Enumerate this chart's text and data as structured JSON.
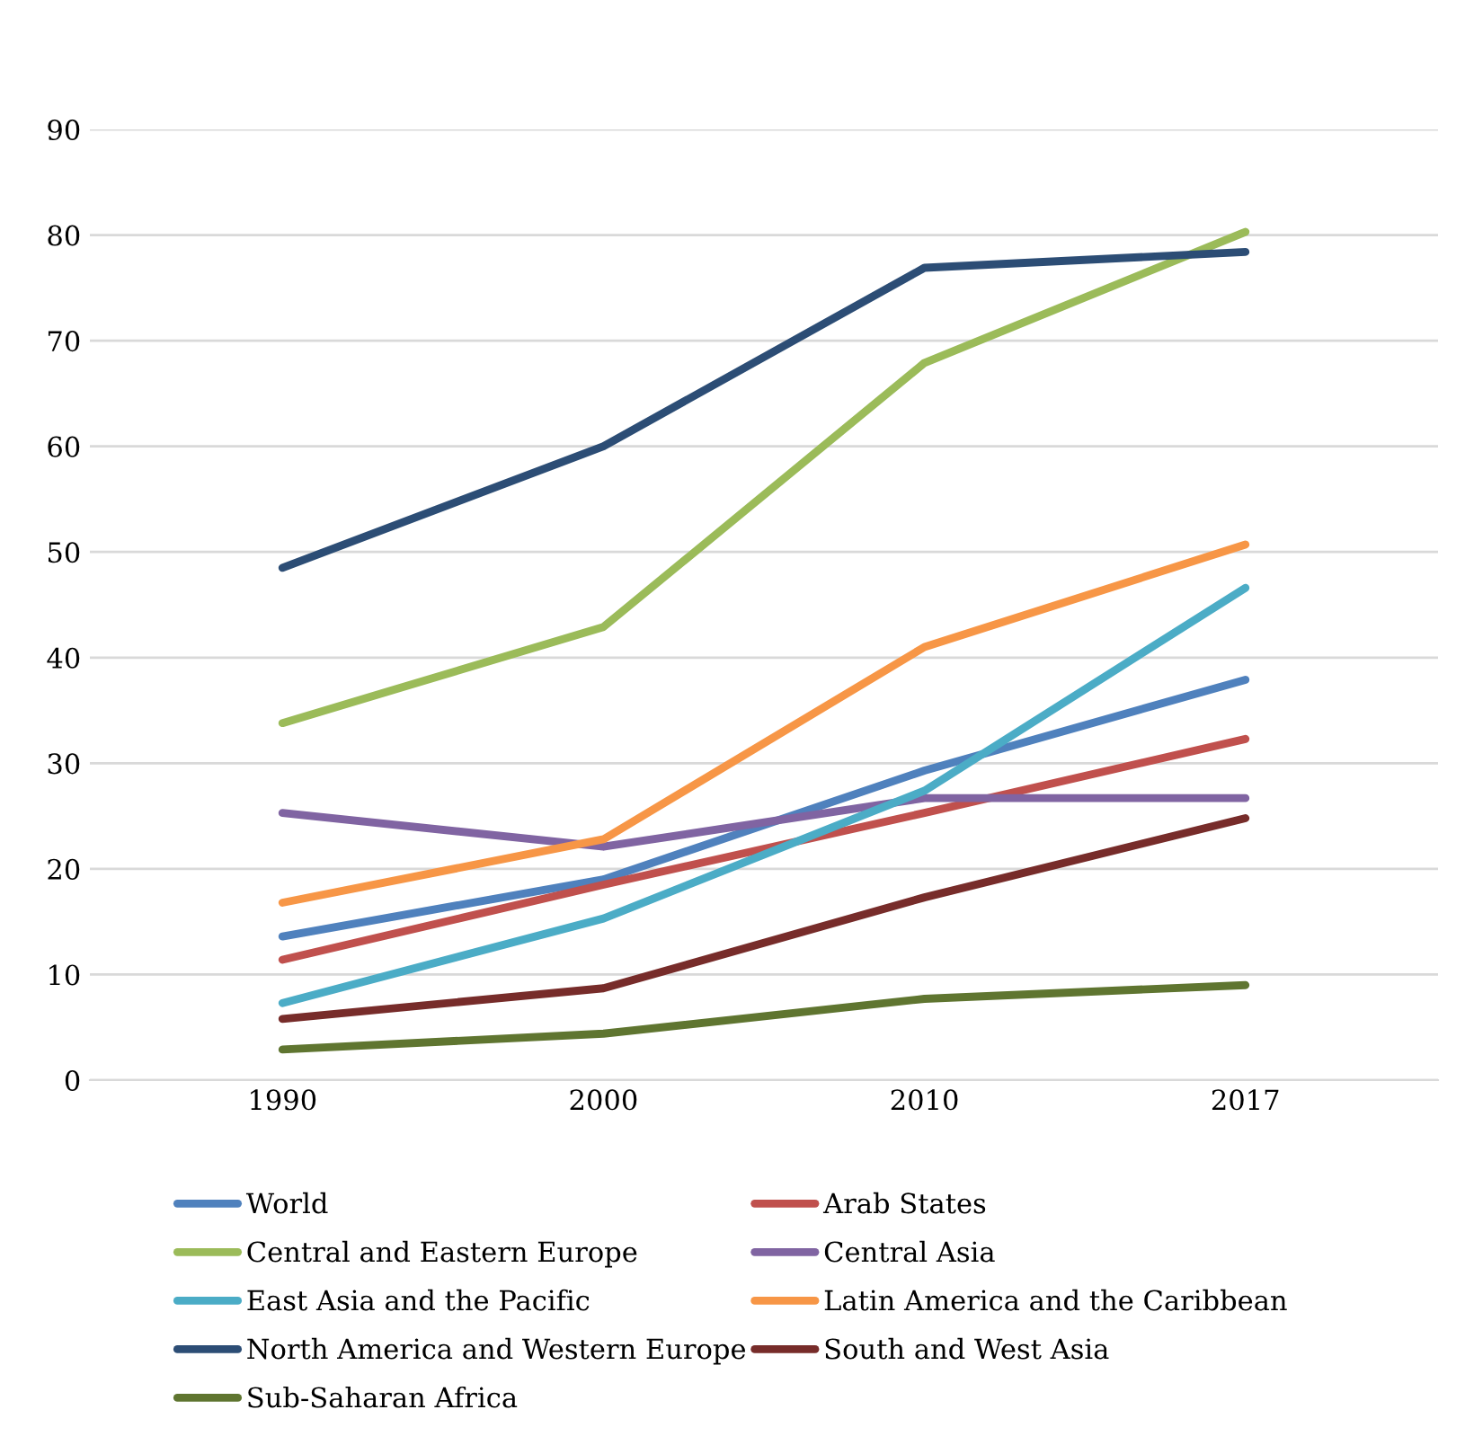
{
  "chart_data": {
    "type": "line",
    "categories": [
      "1990",
      "2000",
      "2010",
      "2017"
    ],
    "series": [
      {
        "name": "World",
        "color": "#4f81bd",
        "values": [
          13.6,
          19.0,
          29.3,
          37.9
        ]
      },
      {
        "name": "Arab States",
        "color": "#c0504d",
        "values": [
          11.4,
          18.5,
          25.3,
          32.3
        ]
      },
      {
        "name": "Central and Eastern Europe",
        "color": "#9bbb59",
        "values": [
          33.8,
          42.9,
          67.9,
          80.3
        ]
      },
      {
        "name": "Central Asia",
        "color": "#8064a2",
        "values": [
          25.3,
          22.1,
          26.7,
          26.7
        ]
      },
      {
        "name": "East Asia and the Pacific",
        "color": "#4bacc6",
        "values": [
          7.3,
          15.3,
          27.4,
          46.6
        ]
      },
      {
        "name": "Latin America and the Caribbean",
        "color": "#f79646",
        "values": [
          16.8,
          22.8,
          41.0,
          50.7
        ]
      },
      {
        "name": "North America and Western Europe",
        "color": "#2c4d75",
        "values": [
          48.5,
          60.0,
          76.9,
          78.4
        ]
      },
      {
        "name": "South and West Asia",
        "color": "#772c2a",
        "values": [
          5.8,
          8.7,
          17.3,
          24.8
        ]
      },
      {
        "name": "Sub-Saharan Africa",
        "color": "#5f7530",
        "values": [
          2.9,
          4.4,
          7.7,
          9.0
        ]
      }
    ],
    "ylim": [
      0,
      90
    ],
    "yticks": [
      0,
      10,
      20,
      30,
      40,
      50,
      60,
      70,
      80,
      90
    ],
    "grid": "y",
    "legend": "bottom",
    "marker": "none",
    "line_style": "solid"
  }
}
